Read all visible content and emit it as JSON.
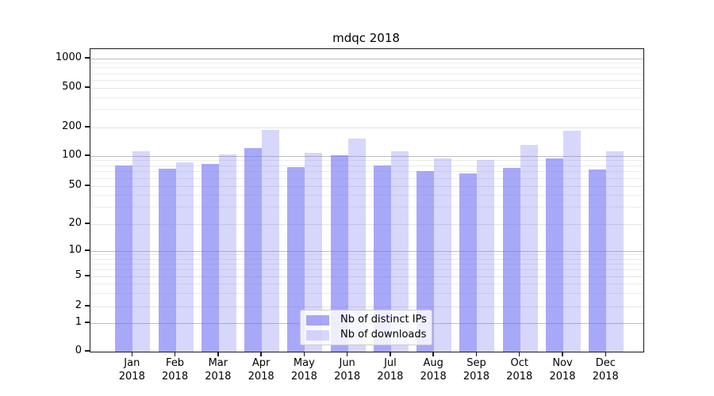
{
  "chart_data": {
    "type": "bar",
    "title": "mdqc 2018",
    "yscale": "symlog",
    "grid": true,
    "legend_position": "lower-center",
    "ylim": [
      0,
      1250
    ],
    "y_ticks": [
      0,
      1,
      2,
      5,
      10,
      20,
      50,
      100,
      200,
      500,
      1000
    ],
    "categories": [
      "Jan 2018",
      "Feb 2018",
      "Mar 2018",
      "Apr 2018",
      "May 2018",
      "Jun 2018",
      "Jul 2018",
      "Aug 2018",
      "Sep 2018",
      "Oct 2018",
      "Nov 2018",
      "Dec 2018"
    ],
    "series": [
      {
        "name": "Nb of distinct IPs",
        "color": "rgba(117,117,244,0.63)",
        "values": [
          80,
          75,
          83,
          122,
          78,
          102,
          80,
          71,
          67,
          76,
          95,
          73
        ]
      },
      {
        "name": "Nb of downloads",
        "color": "rgba(117,117,244,0.29)",
        "values": [
          112,
          86,
          104,
          189,
          108,
          153,
          112,
          95,
          91,
          131,
          185,
          112
        ]
      }
    ]
  },
  "legend": {
    "items": [
      "Nb of distinct IPs",
      "Nb of downloads"
    ]
  }
}
